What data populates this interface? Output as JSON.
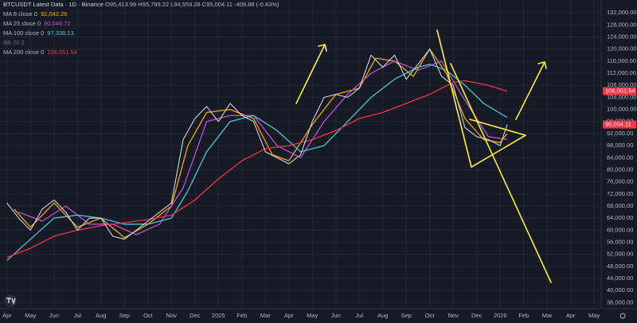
{
  "chart_data": {
    "type": "line",
    "title": "BTCUSDT Latest Data · 1D · Binance",
    "ohlc": "O95,413.99 H95,799.22 L94,559.28 C95,004.11 -409.88 (-0.43%)",
    "bb_label": "BB 20 2",
    "price_tag": "95,004.11",
    "ylim": [
      34000,
      136000
    ],
    "yticks": [
      {
        "value": 132000,
        "label": "132,000.00"
      },
      {
        "value": 128000,
        "label": "128,000.00"
      },
      {
        "value": 124000,
        "label": "124,000.00"
      },
      {
        "value": 120000,
        "label": "120,000.00"
      },
      {
        "value": 116000,
        "label": "116,000.00"
      },
      {
        "value": 112000,
        "label": "112,000.00"
      },
      {
        "value": 108000,
        "label": "108,000.00"
      },
      {
        "value": 104000,
        "label": "104,000.00"
      },
      {
        "value": 100000,
        "label": "100,000.00"
      },
      {
        "value": 96000,
        "label": "96,000.00"
      },
      {
        "value": 92000,
        "label": "92,000.00"
      },
      {
        "value": 88000,
        "label": "88,000.00"
      },
      {
        "value": 84000,
        "label": "84,000.00"
      },
      {
        "value": 80000,
        "label": "80,000.00"
      },
      {
        "value": 76000,
        "label": "76,000.00"
      },
      {
        "value": 72000,
        "label": "72,000.00"
      },
      {
        "value": 68000,
        "label": "68,000.00"
      },
      {
        "value": 64000,
        "label": "64,000.00"
      },
      {
        "value": 60000,
        "label": "60,000.00"
      },
      {
        "value": 56000,
        "label": "56,000.00"
      },
      {
        "value": 52000,
        "label": "52,000.00"
      },
      {
        "value": 48000,
        "label": "48,000.00"
      },
      {
        "value": 44000,
        "label": "44,000.00"
      },
      {
        "value": 40000,
        "label": "40,000.00"
      },
      {
        "value": 36000,
        "label": "36,000.00"
      }
    ],
    "xlim": [
      -0.3,
      25.3
    ],
    "xticks": [
      {
        "value": 0,
        "label": "Apr"
      },
      {
        "value": 1,
        "label": "May"
      },
      {
        "value": 2,
        "label": "Jun"
      },
      {
        "value": 3,
        "label": "Jul"
      },
      {
        "value": 4,
        "label": "Aug"
      },
      {
        "value": 5,
        "label": "Sep"
      },
      {
        "value": 6,
        "label": "Oct"
      },
      {
        "value": 7,
        "label": "Nov"
      },
      {
        "value": 8,
        "label": "Dec"
      },
      {
        "value": 9,
        "label": "2025"
      },
      {
        "value": 10,
        "label": "Feb"
      },
      {
        "value": 11,
        "label": "Mar"
      },
      {
        "value": 12,
        "label": "Apr"
      },
      {
        "value": 13,
        "label": "May"
      },
      {
        "value": 14,
        "label": "Jun"
      },
      {
        "value": 15,
        "label": "Jul"
      },
      {
        "value": 16,
        "label": "Aug"
      },
      {
        "value": 17,
        "label": "Sep"
      },
      {
        "value": 18,
        "label": "Oct"
      },
      {
        "value": 19,
        "label": "Nov"
      },
      {
        "value": 20,
        "label": "Dec"
      },
      {
        "value": 21,
        "label": "2026"
      },
      {
        "value": 22,
        "label": "Feb"
      },
      {
        "value": 23,
        "label": "Mar"
      },
      {
        "value": 24,
        "label": "Apr"
      },
      {
        "value": 25,
        "label": "May"
      }
    ],
    "grid": true,
    "price": {
      "color": "#d1d4dc",
      "x": [
        0,
        0.5,
        1,
        1.5,
        2,
        2.5,
        3,
        3.5,
        4,
        4.5,
        5,
        5.5,
        6,
        6.5,
        7,
        7.5,
        8,
        8.5,
        9,
        9.5,
        10,
        10.5,
        11,
        11.5,
        12,
        12.5,
        13,
        13.5,
        14,
        14.5,
        15,
        15.5,
        16,
        16.5,
        17,
        17.5,
        18,
        18.5,
        19,
        19.5,
        20,
        20.5,
        21,
        21.3
      ],
      "values": [
        69000,
        64000,
        60000,
        67000,
        70000,
        66000,
        60000,
        64000,
        64000,
        58000,
        57000,
        60000,
        63000,
        66000,
        69000,
        90000,
        97000,
        101000,
        96000,
        102000,
        98000,
        96000,
        86000,
        84000,
        82000,
        85000,
        96000,
        104000,
        105000,
        104000,
        107000,
        118000,
        114000,
        118000,
        110000,
        115000,
        120000,
        111000,
        108000,
        94000,
        91000,
        90000,
        88000,
        95004.11
      ]
    },
    "series": [
      {
        "name": "MA 8 close 0",
        "legend_value": "92,042.26",
        "color": "#f7a600",
        "x": [
          0.3,
          1,
          2,
          3,
          4,
          5,
          6,
          7,
          7.7,
          8.5,
          9.5,
          10.5,
          11.3,
          12,
          13,
          14,
          15,
          15.7,
          16.5,
          17.3,
          18,
          18.7,
          19.5,
          20.3,
          21,
          21.3
        ],
        "values": [
          67000,
          61000,
          69000,
          61000,
          64000,
          57500,
          62000,
          68000,
          88000,
          99000,
          100000,
          97000,
          85000,
          83000,
          95000,
          105000,
          107000,
          117000,
          116000,
          111000,
          120000,
          112000,
          97000,
          90000,
          89000,
          92042.26
        ]
      },
      {
        "name": "MA 25 close 0",
        "legend_value": "90,046.72",
        "color": "#c44fd6",
        "x": [
          0.5,
          1.5,
          2.5,
          3.5,
          4.5,
          5.5,
          6.5,
          7.5,
          8.5,
          9.5,
          10.5,
          11.5,
          12.5,
          13.5,
          14.5,
          15.5,
          16.5,
          17.5,
          18.5,
          19.5,
          20.5,
          21.3
        ],
        "values": [
          66000,
          63000,
          68000,
          62000,
          62000,
          58500,
          62000,
          74000,
          96000,
          98000,
          98000,
          88000,
          84000,
          96000,
          105000,
          112000,
          116000,
          113000,
          116000,
          103000,
          91000,
          90046.72
        ]
      },
      {
        "name": "MA 100 close 0",
        "legend_value": "97,338.13",
        "color": "#4fc3d9",
        "x": [
          0,
          1,
          2,
          3,
          4,
          5,
          6,
          7,
          7.7,
          8.5,
          9.5,
          10.5,
          11.5,
          12.5,
          13.5,
          14.5,
          15.5,
          16.5,
          17.5,
          18,
          18.7,
          19.5,
          20.3,
          21.3
        ],
        "values": [
          50000,
          57000,
          64000,
          65000,
          64000,
          62000,
          62000,
          64000,
          73000,
          86000,
          96000,
          98000,
          93000,
          86000,
          88000,
          96000,
          104000,
          110000,
          114000,
          115000,
          113000,
          108000,
          102000,
          97338.13
        ]
      },
      {
        "name": "MA 200 close 0",
        "legend_value": "106,051.54",
        "color": "#f23645",
        "x": [
          0,
          1,
          2,
          3,
          4,
          5,
          6,
          7,
          8,
          9,
          10,
          11,
          12,
          13,
          14,
          15,
          16,
          17,
          18,
          19,
          19.5,
          20.5,
          21.3
        ],
        "values": [
          51000,
          54000,
          58000,
          60000,
          61500,
          62500,
          63500,
          65000,
          70000,
          77000,
          83000,
          87000,
          88000,
          90000,
          93000,
          97000,
          99000,
          102000,
          105000,
          109000,
          109500,
          108000,
          106051.54
        ]
      }
    ]
  }
}
